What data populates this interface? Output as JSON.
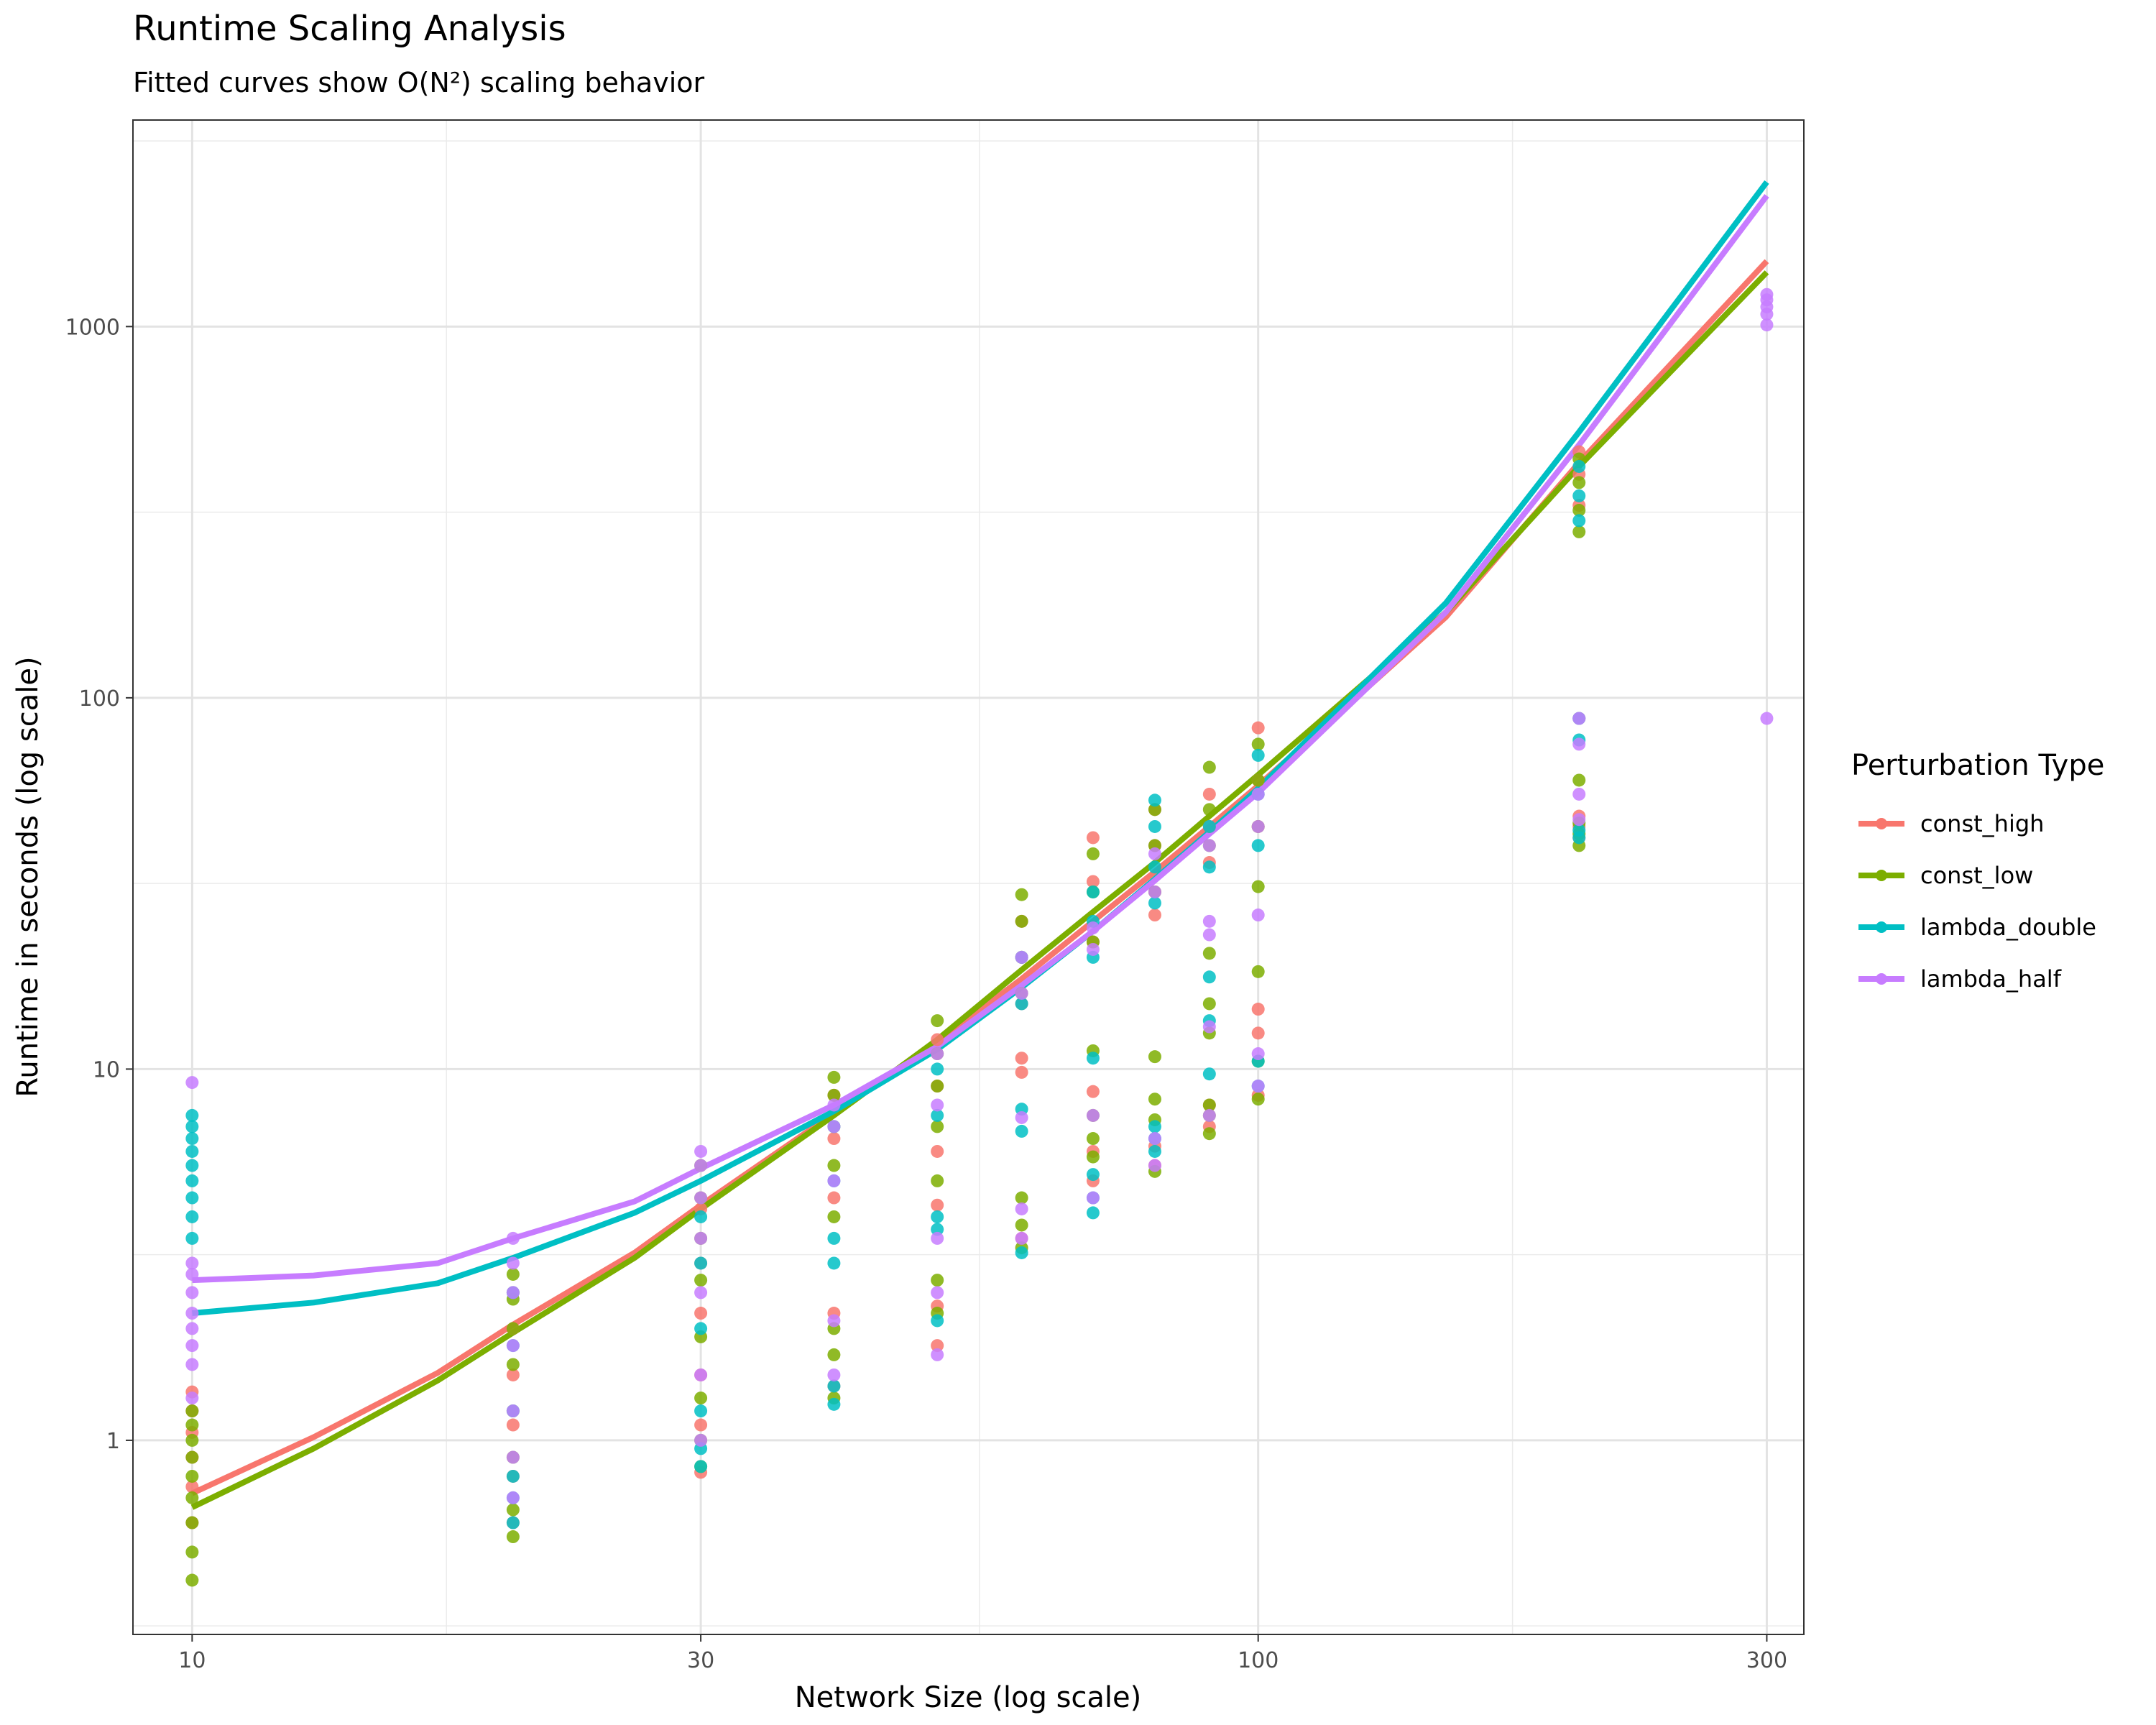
{
  "chart_data": {
    "type": "scatter",
    "title": "Runtime Scaling Analysis",
    "subtitle": "Fitted curves show O(N²) scaling behavior",
    "xlabel": "Network Size (log scale)",
    "ylabel": "Runtime in seconds (log scale)",
    "x_scale": "log10",
    "y_scale": "log10",
    "xlim": [
      8.8,
      325
    ],
    "ylim": [
      0.3,
      3600
    ],
    "x_ticks": [
      10,
      30,
      100,
      300
    ],
    "x_tick_labels": [
      "10",
      "30",
      "100",
      "300"
    ],
    "y_ticks": [
      1,
      10,
      100,
      1000
    ],
    "y_tick_labels": [
      "1",
      "10",
      "100",
      "1000"
    ],
    "grid": true,
    "legend": {
      "title": "Perturbation Type",
      "position": "right"
    },
    "series": [
      {
        "name": "const_high",
        "color": "#F8766D",
        "fit": {
          "x": [
            10,
            13,
            17,
            20,
            26,
            30,
            40,
            50,
            60,
            70,
            80,
            90,
            100,
            150,
            200,
            300
          ],
          "y": [
            0.72,
            1.02,
            1.52,
            2.05,
            3.2,
            4.3,
            7.6,
            11.8,
            17.5,
            25,
            34,
            45,
            58,
            165,
            430,
            1500
          ]
        },
        "points": [
          {
            "x": 10,
            "y": [
              0.6,
              0.75,
              0.9,
              1.05,
              1.2,
              1.35
            ]
          },
          {
            "x": 20,
            "y": [
              0.6,
              0.8,
              1.1,
              1.5,
              2.0,
              2.5
            ]
          },
          {
            "x": 30,
            "y": [
              0.82,
              1.1,
              1.5,
              2.2,
              3.0,
              4.2
            ]
          },
          {
            "x": 40,
            "y": [
              1.4,
              2.2,
              4.5,
              6.5,
              8.5
            ]
          },
          {
            "x": 50,
            "y": [
              1.8,
              2.3,
              4.3,
              6.0,
              9.0,
              12
            ]
          },
          {
            "x": 60,
            "y": [
              3.5,
              9.8,
              10.7,
              15,
              20,
              25
            ]
          },
          {
            "x": 70,
            "y": [
              5.0,
              6.0,
              8.7,
              22,
              32,
              42
            ]
          },
          {
            "x": 80,
            "y": [
              5.5,
              6.2,
              26,
              30,
              40,
              50
            ]
          },
          {
            "x": 90,
            "y": [
              7.0,
              8.0,
              36,
              45,
              55
            ]
          },
          {
            "x": 100,
            "y": [
              8.5,
              12.5,
              14.5,
              45,
              60,
              83
            ]
          },
          {
            "x": 200,
            "y": [
              42,
              45,
              48,
              88,
              330,
              400,
              460
            ]
          }
        ]
      },
      {
        "name": "const_low",
        "color": "#7CAE00",
        "fit": {
          "x": [
            10,
            13,
            17,
            20,
            26,
            30,
            40,
            50,
            60,
            70,
            80,
            90,
            100,
            150,
            200,
            300
          ],
          "y": [
            0.66,
            0.95,
            1.45,
            1.95,
            3.1,
            4.2,
            7.5,
            12,
            18.5,
            26.5,
            36,
            48,
            62,
            170,
            420,
            1400
          ]
        },
        "points": [
          {
            "x": 10,
            "y": [
              0.42,
              0.5,
              0.6,
              0.7,
              0.8,
              0.9,
              1.0,
              1.1,
              1.2
            ]
          },
          {
            "x": 20,
            "y": [
              0.55,
              0.65,
              0.9,
              1.2,
              1.6,
              2.0,
              2.4,
              2.8
            ]
          },
          {
            "x": 30,
            "y": [
              0.85,
              1.0,
              1.3,
              1.9,
              2.7,
              3.5,
              4.5,
              5.5
            ]
          },
          {
            "x": 40,
            "y": [
              1.3,
              1.7,
              2.0,
              4.0,
              5.5,
              7.0,
              8.5,
              9.5
            ]
          },
          {
            "x": 50,
            "y": [
              2.2,
              2.7,
              5.0,
              7.0,
              9.0,
              11,
              13.5
            ]
          },
          {
            "x": 60,
            "y": [
              3.3,
              3.8,
              4.5,
              16,
              20,
              25,
              29.5
            ]
          },
          {
            "x": 70,
            "y": [
              5.8,
              6.5,
              7.5,
              11.2,
              22,
              30,
              38
            ]
          },
          {
            "x": 80,
            "y": [
              5.3,
              7.3,
              8.3,
              10.8,
              30,
              40,
              50
            ]
          },
          {
            "x": 90,
            "y": [
              6.7,
              7.5,
              8.0,
              12.5,
              15,
              20.5,
              40,
              50,
              65
            ]
          },
          {
            "x": 100,
            "y": [
              8.3,
              10.5,
              18.3,
              31,
              45,
              60,
              75
            ]
          },
          {
            "x": 200,
            "y": [
              40,
              43,
              46,
              60,
              280,
              320,
              380,
              440
            ]
          }
        ]
      },
      {
        "name": "lambda_double",
        "color": "#00BFC4",
        "fit": {
          "x": [
            10,
            13,
            17,
            20,
            26,
            30,
            40,
            50,
            60,
            70,
            80,
            90,
            100,
            150,
            200,
            300
          ],
          "y": [
            2.2,
            2.35,
            2.65,
            3.1,
            4.1,
            5.0,
            7.7,
            11.3,
            16.6,
            23.5,
            32.5,
            43.5,
            57,
            180,
            520,
            2450
          ]
        },
        "points": [
          {
            "x": 10,
            "y": [
              3.5,
              4.0,
              4.5,
              5.0,
              5.5,
              6.0,
              6.5,
              7.0,
              7.5
            ]
          },
          {
            "x": 20,
            "y": [
              0.6,
              0.7,
              0.8,
              1.2,
              1.8,
              2.5
            ]
          },
          {
            "x": 30,
            "y": [
              0.85,
              0.95,
              1.2,
              2.0,
              3.0,
              4.0
            ]
          },
          {
            "x": 40,
            "y": [
              1.25,
              1.4,
              3.0,
              3.5,
              5.0,
              7.0
            ]
          },
          {
            "x": 50,
            "y": [
              2.1,
              3.7,
              4.0,
              7.5,
              10
            ]
          },
          {
            "x": 60,
            "y": [
              3.2,
              6.8,
              7.8,
              15,
              20
            ]
          },
          {
            "x": 70,
            "y": [
              4.1,
              4.5,
              5.2,
              10.7,
              20,
              25,
              30
            ]
          },
          {
            "x": 80,
            "y": [
              6.0,
              6.5,
              7.0,
              28,
              35,
              45,
              53
            ]
          },
          {
            "x": 90,
            "y": [
              9.7,
              13.5,
              17.7,
              35,
              45
            ]
          },
          {
            "x": 100,
            "y": [
              9.0,
              10.5,
              40,
              55,
              70
            ]
          },
          {
            "x": 200,
            "y": [
              42,
              44,
              77,
              88,
              300,
              350,
              420
            ]
          }
        ]
      },
      {
        "name": "lambda_half",
        "color": "#C77CFF",
        "fit": {
          "x": [
            10,
            13,
            17,
            20,
            26,
            30,
            40,
            50,
            60,
            70,
            80,
            90,
            100,
            150,
            200,
            300
          ],
          "y": [
            2.7,
            2.78,
            3.0,
            3.5,
            4.4,
            5.4,
            8.0,
            11.5,
            16.8,
            23.5,
            32.2,
            43.0,
            55.5,
            170,
            480,
            2250
          ]
        },
        "points": [
          {
            "x": 10,
            "y": [
              1.3,
              1.6,
              1.8,
              2.0,
              2.2,
              2.5,
              2.8,
              3.0,
              9.2
            ]
          },
          {
            "x": 20,
            "y": [
              0.7,
              0.9,
              1.2,
              1.8,
              2.5,
              3.0,
              3.5
            ]
          },
          {
            "x": 30,
            "y": [
              1.0,
              1.5,
              2.5,
              3.5,
              4.5,
              5.5,
              6.0
            ]
          },
          {
            "x": 40,
            "y": [
              1.5,
              2.1,
              5.0,
              7.0,
              8.0
            ]
          },
          {
            "x": 50,
            "y": [
              1.7,
              2.5,
              3.5,
              8.0,
              11
            ]
          },
          {
            "x": 60,
            "y": [
              3.5,
              4.2,
              7.4,
              16,
              20
            ]
          },
          {
            "x": 70,
            "y": [
              4.5,
              7.5,
              21,
              24
            ]
          },
          {
            "x": 80,
            "y": [
              5.5,
              6.5,
              30,
              38
            ]
          },
          {
            "x": 90,
            "y": [
              7.5,
              13,
              23,
              25,
              40
            ]
          },
          {
            "x": 100,
            "y": [
              9.0,
              11.0,
              26,
              45,
              55
            ]
          },
          {
            "x": 200,
            "y": [
              47,
              55,
              75,
              88
            ]
          },
          {
            "x": 300,
            "y": [
              88,
              1010,
              1080,
              1130,
              1180,
              1220
            ]
          }
        ]
      }
    ]
  }
}
